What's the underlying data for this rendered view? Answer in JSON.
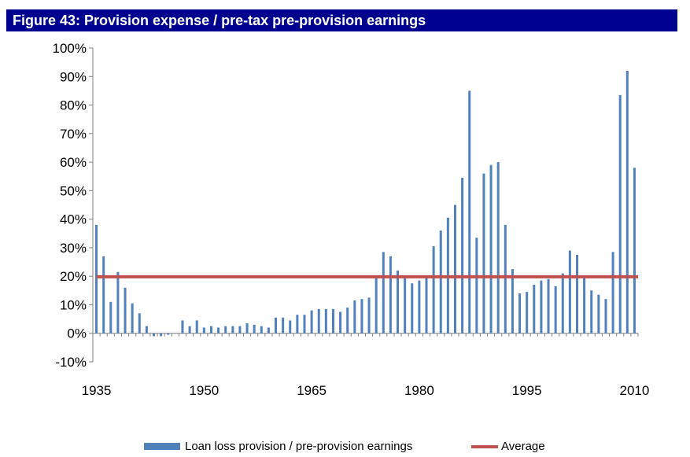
{
  "header": {
    "title": "Figure 43: Provision expense / pre-tax pre-provision earnings"
  },
  "chart_data": {
    "type": "bar",
    "title": "",
    "xlabel": "",
    "ylabel": "",
    "x": [
      1935,
      1936,
      1937,
      1938,
      1939,
      1940,
      1941,
      1942,
      1943,
      1944,
      1945,
      1946,
      1947,
      1948,
      1949,
      1950,
      1951,
      1952,
      1953,
      1954,
      1955,
      1956,
      1957,
      1958,
      1959,
      1960,
      1961,
      1962,
      1963,
      1964,
      1965,
      1966,
      1967,
      1968,
      1969,
      1970,
      1971,
      1972,
      1973,
      1974,
      1975,
      1976,
      1977,
      1978,
      1979,
      1980,
      1981,
      1982,
      1983,
      1984,
      1985,
      1986,
      1987,
      1988,
      1989,
      1990,
      1991,
      1992,
      1993,
      1994,
      1995,
      1996,
      1997,
      1998,
      1999,
      2000,
      2001,
      2002,
      2003,
      2004,
      2005,
      2006,
      2007,
      2008,
      2009,
      2010
    ],
    "series": [
      {
        "name": "Loan loss provision / pre-provision earnings",
        "values": [
          38,
          27,
          11,
          21.5,
          16,
          10.5,
          7,
          2.5,
          -1,
          -1,
          -0.5,
          0,
          4.5,
          2.5,
          4.5,
          2,
          2.5,
          2,
          2.5,
          2.5,
          2.5,
          3.5,
          3,
          2.5,
          2,
          5.5,
          5.5,
          4.5,
          6.5,
          6.5,
          8,
          8.5,
          8.5,
          8.5,
          7.5,
          9,
          11.5,
          12,
          12.5,
          19.5,
          28.5,
          27,
          22,
          19.5,
          17.5,
          18.5,
          19.5,
          30.5,
          36,
          40.5,
          45,
          54.5,
          85,
          33.5,
          56,
          59,
          60,
          38,
          22.5,
          14,
          14.5,
          17,
          18.5,
          19,
          16.5,
          21,
          29,
          27.5,
          19.5,
          15,
          13.5,
          12,
          28.5,
          83.5,
          92,
          58
        ]
      },
      {
        "name": "Average",
        "type": "line",
        "value": 19.8
      }
    ],
    "y_unit": "%",
    "ylim": [
      -10,
      100
    ],
    "yticks": [
      "-10%",
      "0%",
      "10%",
      "20%",
      "30%",
      "40%",
      "50%",
      "60%",
      "70%",
      "80%",
      "90%",
      "100%"
    ],
    "xticks": [
      "1935",
      "1950",
      "1965",
      "1980",
      "1995",
      "2010"
    ],
    "grid": false,
    "legend_position": "bottom",
    "colors": {
      "bar": "#4f81bd",
      "average": "#c0504d"
    }
  }
}
